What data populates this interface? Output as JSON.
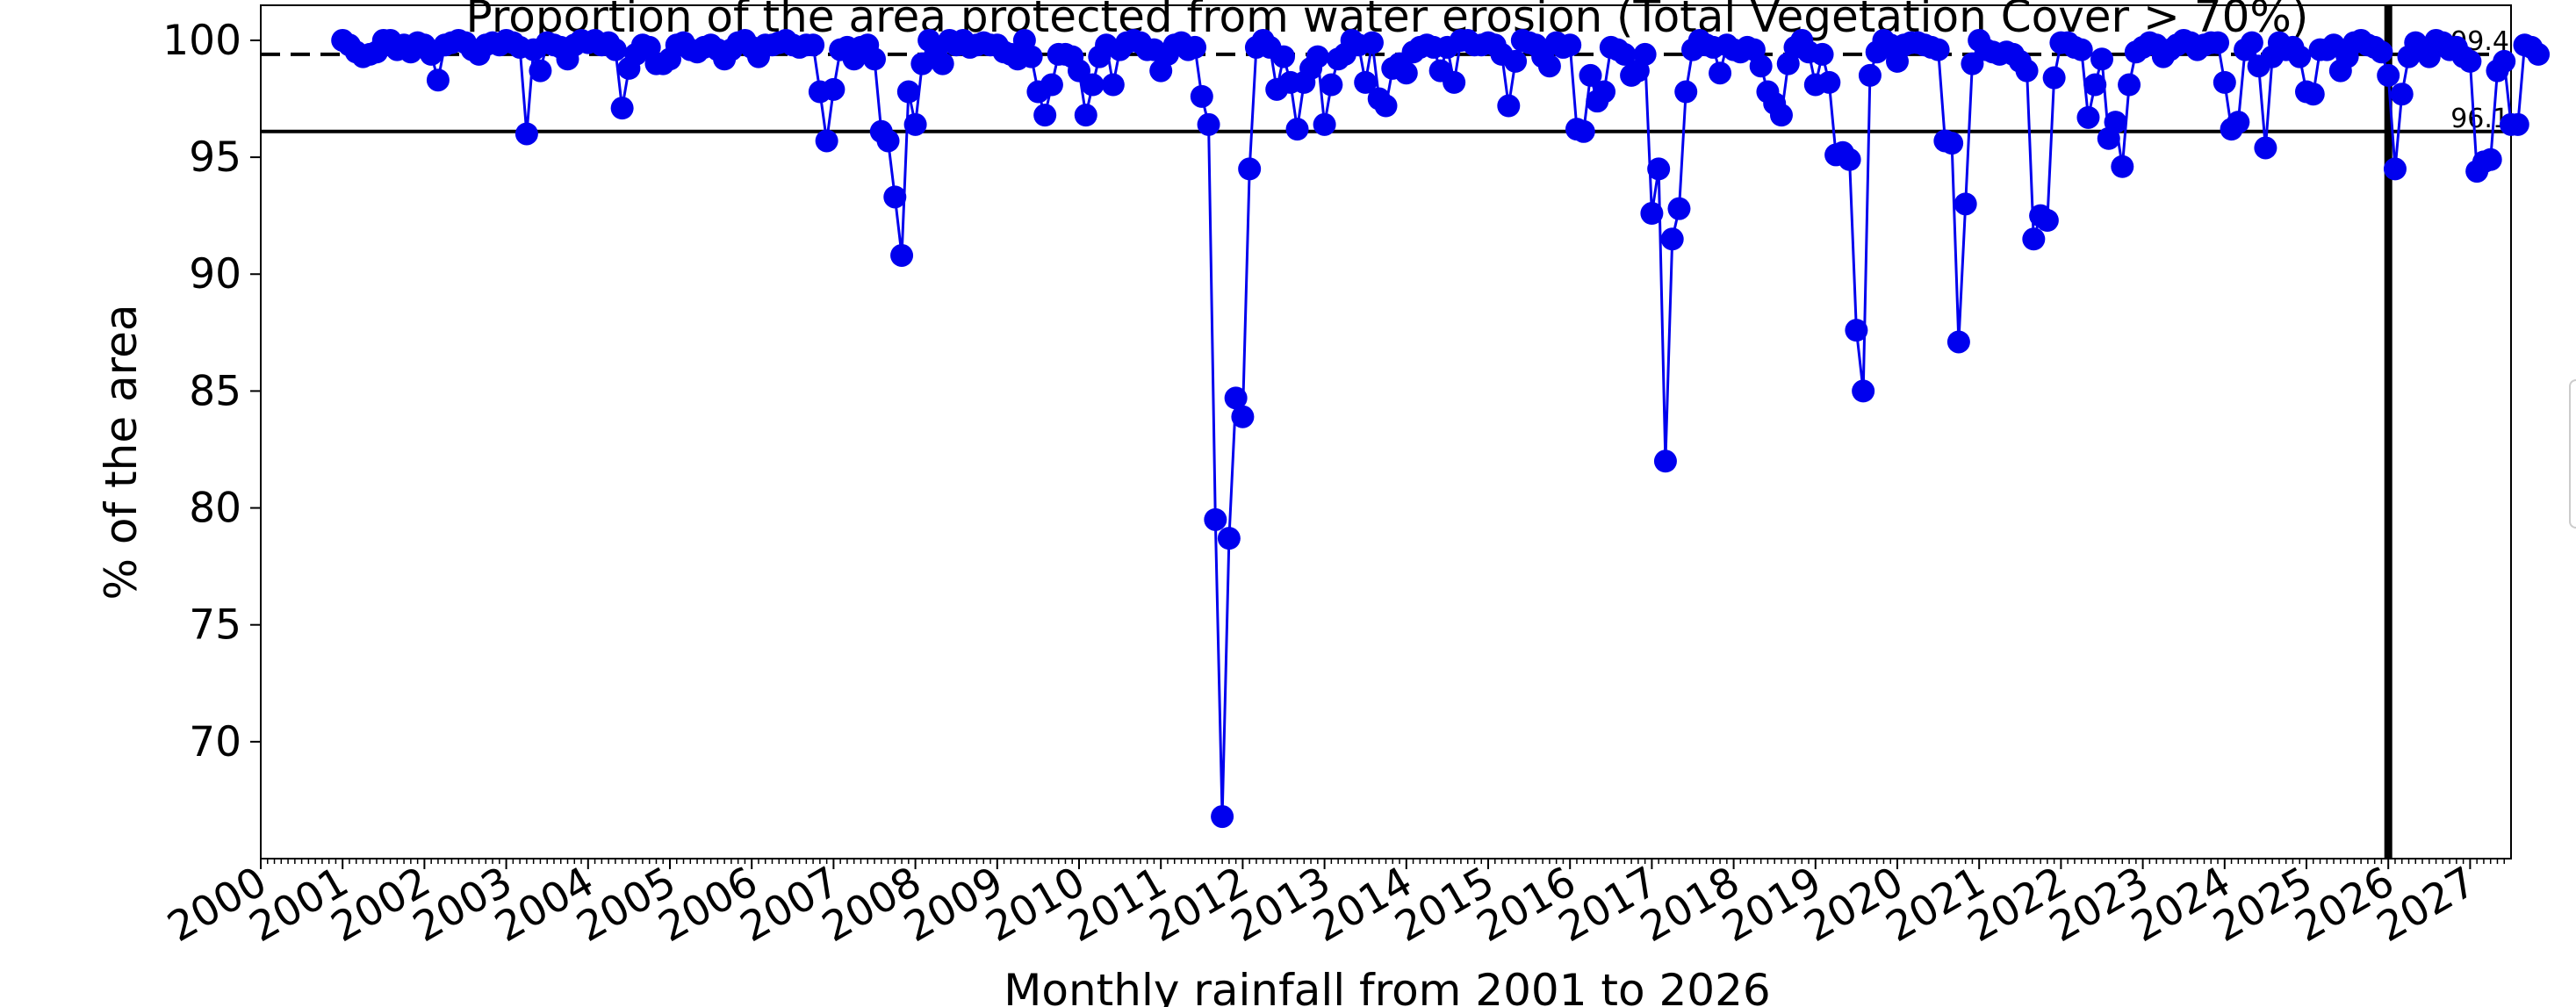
{
  "chart_data": {
    "type": "line",
    "title": "Proportion of the area protected from water erosion (Total Vegetation Cover > 70%)",
    "xlabel": "Monthly rainfall from 2001  to 2026",
    "ylabel": "% of the area",
    "xlim": [
      2000,
      2027.5
    ],
    "ylim": [
      65,
      101.5
    ],
    "x_ticks": [
      "2000",
      "2001",
      "2002",
      "2003",
      "2004",
      "2005",
      "2006",
      "2007",
      "2008",
      "2009",
      "2010",
      "2011",
      "2012",
      "2013",
      "2014",
      "2015",
      "2016",
      "2017",
      "2018",
      "2019",
      "2020",
      "2021",
      "2022",
      "2023",
      "2024",
      "2025",
      "2026",
      "2027"
    ],
    "y_ticks": [
      70,
      75,
      80,
      85,
      90,
      95,
      100
    ],
    "grid": false,
    "series_color": "#0000ee",
    "reference_lines": [
      {
        "value": 99.4,
        "label": "99.4",
        "style": "dashed"
      },
      {
        "value": 96.1,
        "label": "96.1",
        "style": "solid"
      }
    ],
    "vertical_line_x": 2026.0,
    "values": [
      100.0,
      99.8,
      99.5,
      99.3,
      99.4,
      99.5,
      100.0,
      100.0,
      99.6,
      99.8,
      99.5,
      99.9,
      99.8,
      99.4,
      98.3,
      99.8,
      99.9,
      100.0,
      99.9,
      99.6,
      99.4,
      99.8,
      99.9,
      99.8,
      100.0,
      99.9,
      99.7,
      96.0,
      99.6,
      98.7,
      99.9,
      99.8,
      99.7,
      99.2,
      99.8,
      100.0,
      99.9,
      100.0,
      99.8,
      99.9,
      99.6,
      97.1,
      98.8,
      99.4,
      99.8,
      99.7,
      99.0,
      99.0,
      99.2,
      99.8,
      99.9,
      99.6,
      99.5,
      99.7,
      99.8,
      99.6,
      99.2,
      99.6,
      99.9,
      100.0,
      99.7,
      99.3,
      99.8,
      99.8,
      99.9,
      100.0,
      99.8,
      99.7,
      99.8,
      99.8,
      97.8,
      95.7,
      97.9,
      99.6,
      99.7,
      99.2,
      99.7,
      99.8,
      99.2,
      96.1,
      95.7,
      93.3,
      90.8,
      97.8,
      96.4,
      99.0,
      100.0,
      99.5,
      99.0,
      100.0,
      99.8,
      100.0,
      99.7,
      99.8,
      99.9,
      99.8,
      99.8,
      99.5,
      99.4,
      99.2,
      100.0,
      99.3,
      97.8,
      96.8,
      98.1,
      99.4,
      99.4,
      99.3,
      98.7,
      96.8,
      98.1,
      99.3,
      99.8,
      98.1,
      99.6,
      99.9,
      100.0,
      99.9,
      99.6,
      99.6,
      98.7,
      99.4,
      99.8,
      99.9,
      99.6,
      99.7,
      97.6,
      96.4,
      79.5,
      66.8,
      78.7,
      84.7,
      83.9,
      94.5,
      99.7,
      100.0,
      99.7,
      97.9,
      99.3,
      98.2,
      96.2,
      98.2,
      98.8,
      99.3,
      96.4,
      98.1,
      99.2,
      99.4,
      100.0,
      99.8,
      98.2,
      99.9,
      97.5,
      97.2,
      98.8,
      99.0,
      98.6,
      99.5,
      99.7,
      99.8,
      99.7,
      98.7,
      99.7,
      98.2,
      100.0,
      100.0,
      99.8,
      99.8,
      99.9,
      99.8,
      99.4,
      97.2,
      99.1,
      100.0,
      99.9,
      99.8,
      99.3,
      98.9,
      99.9,
      99.7,
      99.8,
      96.2,
      96.1,
      98.5,
      97.4,
      97.8,
      99.7,
      99.6,
      99.4,
      98.5,
      98.7,
      99.4,
      92.6,
      94.5,
      82.0,
      91.5,
      92.8,
      97.8,
      99.6,
      100.0,
      99.8,
      99.7,
      98.6,
      99.8,
      99.6,
      99.5,
      99.7,
      99.6,
      98.9,
      97.8,
      97.3,
      96.8,
      99.0,
      99.7,
      100.0,
      99.5,
      98.1,
      99.4,
      98.2,
      95.1,
      95.2,
      94.9,
      87.6,
      85.0,
      98.5,
      99.5,
      100.0,
      99.8,
      99.1,
      99.8,
      99.9,
      99.9,
      99.8,
      99.7,
      99.6,
      95.7,
      95.6,
      87.1,
      93.0,
      99.0,
      100.0,
      99.6,
      99.5,
      99.4,
      99.5,
      99.4,
      99.1,
      98.7,
      91.5,
      92.5,
      92.3,
      98.4,
      99.9,
      99.9,
      99.7,
      99.6,
      96.7,
      98.1,
      99.2,
      95.8,
      96.5,
      94.6,
      98.1,
      99.5,
      99.7,
      99.9,
      99.8,
      99.3,
      99.6,
      99.8,
      100.0,
      99.9,
      99.6,
      99.8,
      99.9,
      99.9,
      98.2,
      96.2,
      96.5,
      99.6,
      99.9,
      98.9,
      95.4,
      99.3,
      99.9,
      99.6,
      99.7,
      99.3,
      97.8,
      97.7,
      99.6,
      99.6,
      99.8,
      98.7,
      99.3,
      99.9,
      100.0,
      99.8,
      99.7,
      99.5,
      98.5,
      94.5,
      97.7,
      99.3,
      99.9,
      99.6,
      99.3,
      100.0,
      99.9,
      99.6,
      99.7,
      99.3,
      99.1,
      94.4,
      94.8,
      94.9,
      98.7,
      99.1,
      96.4,
      96.4,
      99.8,
      99.7,
      99.4
    ]
  }
}
